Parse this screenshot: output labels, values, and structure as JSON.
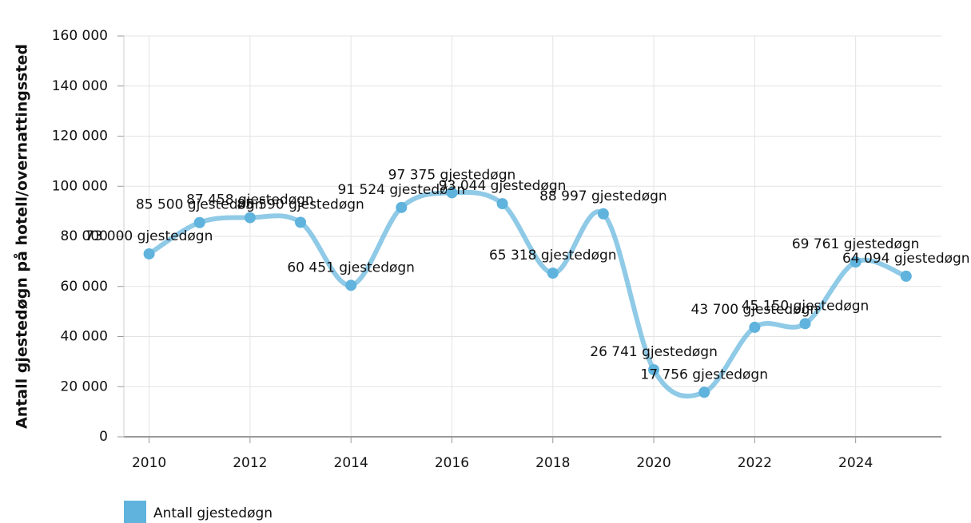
{
  "chart_data": {
    "type": "line",
    "ylabel": "Antall gjestedøgn på hotell/overnattingssted",
    "x": [
      2010,
      2011,
      2012,
      2013,
      2014,
      2015,
      2016,
      2017,
      2018,
      2019,
      2020,
      2021,
      2022,
      2023,
      2024,
      2025
    ],
    "series": [
      {
        "name": "Antall gjestedøgn",
        "color": "#5fb3dd",
        "values": [
          73000,
          85500,
          87458,
          85590,
          60451,
          91524,
          97375,
          93044,
          65318,
          88997,
          26741,
          17756,
          43700,
          45150,
          69761,
          64094
        ],
        "value_labels": [
          "73 000 gjestedøgn",
          "85 500 gjestedøgn",
          "87 458 gjestedøgn",
          "85 590 gjestedøgn",
          "60 451 gjestedøgn",
          "91 524 gjestedøgn",
          "97 375 gjestedøgn",
          "93 044 gjestedøgn",
          "65 318 gjestedøgn",
          "88 997 gjestedøgn",
          "26 741 gjestedøgn",
          "17 756 gjestedøgn",
          "43 700 gjestedøgn",
          "45 150 gjestedøgn",
          "69 761 gjestedøgn",
          "64 094 gjestedøgn"
        ]
      }
    ],
    "xlim": [
      2009.5,
      2025.7
    ],
    "xticks": [
      2010,
      2012,
      2014,
      2016,
      2018,
      2020,
      2022,
      2024
    ],
    "ylim": [
      0,
      160000
    ],
    "yticks": [
      0,
      {
        "value": 20000,
        "label": "20 000"
      },
      {
        "value": 40000,
        "label": "40 000"
      },
      {
        "value": 60000,
        "label": "60 000"
      },
      {
        "value": 80000,
        "label": "80 000"
      },
      {
        "value": 100000,
        "label": "100 000"
      },
      {
        "value": 120000,
        "label": "120 000"
      },
      {
        "value": 140000,
        "label": "140 000"
      },
      {
        "value": 160000,
        "label": "160 000"
      }
    ],
    "grid": true,
    "legend": "bottom-left"
  }
}
